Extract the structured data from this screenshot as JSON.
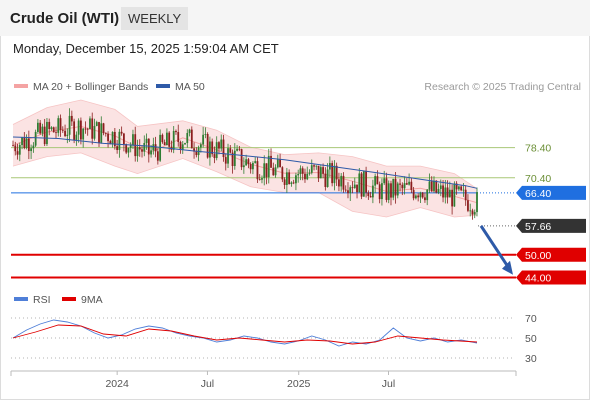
{
  "header": {
    "title": "Crude Oil (WTI)",
    "timeframe": "WEEKLY",
    "datetime": "Monday, December 15, 2025 1:59:04 AM CET"
  },
  "legend": {
    "bollinger": "MA 20 + Bollinger Bands",
    "ma50": "MA 50",
    "rsi": "RSI",
    "rsi_ma": "9MA",
    "credit": "Research © 2025 Trading Central"
  },
  "colors": {
    "bollinger": "#f4a3a3",
    "band_fill": "#fbe3e3",
    "ma50": "#2e5aa8",
    "bull": "#2f7d32",
    "bear": "#8b1e1e",
    "resistance": "#a8c777",
    "pivot": "#1f6fe0",
    "support": "#e00000",
    "last": "#333333",
    "rsi": "#4f7fd8",
    "rsi_ma": "#e00000",
    "arrow": "#2e5aa8"
  },
  "chart_data": [
    {
      "type": "candlestick",
      "y_range": [
        42,
        91
      ],
      "x_range": [
        "2023-06-01",
        "2026-03-15"
      ],
      "x_ticks": [
        {
          "label": "2024",
          "date": "2024-01-01"
        },
        {
          "label": "Jul",
          "date": "2024-07-01"
        },
        {
          "label": "2025",
          "date": "2025-01-01"
        },
        {
          "label": "Jul",
          "date": "2025-07-01"
        }
      ],
      "ma50": [
        [
          0,
          81.2
        ],
        [
          20,
          80.8
        ],
        [
          40,
          79.5
        ],
        [
          60,
          78.8
        ],
        [
          80,
          77.5
        ],
        [
          100,
          76.4
        ],
        [
          120,
          75.2
        ],
        [
          140,
          73.5
        ],
        [
          160,
          71.8
        ],
        [
          180,
          70.0
        ],
        [
          200,
          68.3
        ],
        [
          205,
          67.6
        ]
      ],
      "ma20": [
        [
          0,
          79.0
        ],
        [
          15,
          82.5
        ],
        [
          30,
          84.0
        ],
        [
          45,
          81.5
        ],
        [
          60,
          77.0
        ],
        [
          75,
          81.0
        ],
        [
          90,
          77.8
        ],
        [
          105,
          74.0
        ],
        [
          120,
          71.6
        ],
        [
          135,
          71.8
        ],
        [
          150,
          69.5
        ],
        [
          165,
          66.8
        ],
        [
          180,
          67.6
        ],
        [
          195,
          65.5
        ],
        [
          205,
          63.8
        ]
      ],
      "band_upper": [
        [
          0,
          84.5
        ],
        [
          15,
          89.0
        ],
        [
          30,
          91.0
        ],
        [
          45,
          88.5
        ],
        [
          55,
          84.0
        ],
        [
          75,
          85.5
        ],
        [
          90,
          83.0
        ],
        [
          105,
          78.5
        ],
        [
          120,
          76.5
        ],
        [
          135,
          77.0
        ],
        [
          150,
          76.0
        ],
        [
          165,
          73.5
        ],
        [
          180,
          73.5
        ],
        [
          195,
          71.5
        ],
        [
          205,
          67.5
        ]
      ],
      "band_lower": [
        [
          0,
          73.5
        ],
        [
          15,
          76.0
        ],
        [
          30,
          77.0
        ],
        [
          45,
          73.5
        ],
        [
          55,
          71.5
        ],
        [
          75,
          75.5
        ],
        [
          90,
          72.0
        ],
        [
          105,
          68.0
        ],
        [
          120,
          66.5
        ],
        [
          135,
          66.5
        ],
        [
          150,
          61.5
        ],
        [
          165,
          60.0
        ],
        [
          180,
          62.5
        ],
        [
          195,
          60.0
        ],
        [
          205,
          60.5
        ]
      ],
      "levels": [
        {
          "value": 78.4,
          "label": "78.40",
          "kind": "resistance"
        },
        {
          "value": 70.4,
          "label": "70.40",
          "kind": "resistance"
        },
        {
          "value": 66.4,
          "label": "66.40",
          "kind": "pivot"
        },
        {
          "value": 57.66,
          "label": "57.66",
          "kind": "last"
        },
        {
          "value": 50.0,
          "label": "50.00",
          "kind": "support"
        },
        {
          "value": 44.0,
          "label": "44.00",
          "kind": "support"
        }
      ],
      "forecast_arrow": {
        "from": 57.66,
        "to": 45.5
      }
    },
    {
      "type": "line",
      "name": "RSI",
      "y_ticks": [
        {
          "value": 70,
          "label": "70"
        },
        {
          "value": 50,
          "label": "50"
        },
        {
          "value": 30,
          "label": "30"
        }
      ],
      "y_range": [
        18,
        80
      ],
      "rsi": [
        [
          0,
          50
        ],
        [
          6,
          58
        ],
        [
          12,
          64
        ],
        [
          18,
          68
        ],
        [
          24,
          66
        ],
        [
          30,
          62
        ],
        [
          36,
          55
        ],
        [
          42,
          50
        ],
        [
          48,
          53
        ],
        [
          54,
          59
        ],
        [
          60,
          62
        ],
        [
          66,
          60
        ],
        [
          72,
          55
        ],
        [
          78,
          52
        ],
        [
          84,
          50
        ],
        [
          90,
          46
        ],
        [
          96,
          48
        ],
        [
          102,
          52
        ],
        [
          108,
          50
        ],
        [
          114,
          46
        ],
        [
          120,
          44
        ],
        [
          126,
          47
        ],
        [
          132,
          52
        ],
        [
          138,
          48
        ],
        [
          144,
          42
        ],
        [
          150,
          46
        ],
        [
          156,
          44
        ],
        [
          162,
          48
        ],
        [
          168,
          60
        ],
        [
          174,
          50
        ],
        [
          180,
          47
        ],
        [
          186,
          50
        ],
        [
          192,
          46
        ],
        [
          198,
          48
        ],
        [
          205,
          45
        ]
      ],
      "rsi_ma": [
        [
          0,
          50
        ],
        [
          10,
          56
        ],
        [
          20,
          63
        ],
        [
          30,
          62
        ],
        [
          40,
          54
        ],
        [
          50,
          52
        ],
        [
          60,
          59
        ],
        [
          70,
          57
        ],
        [
          80,
          52
        ],
        [
          90,
          48
        ],
        [
          100,
          50
        ],
        [
          110,
          48
        ],
        [
          120,
          46
        ],
        [
          130,
          48
        ],
        [
          140,
          47
        ],
        [
          150,
          44
        ],
        [
          160,
          46
        ],
        [
          170,
          52
        ],
        [
          180,
          50
        ],
        [
          190,
          48
        ],
        [
          205,
          46
        ]
      ]
    }
  ]
}
